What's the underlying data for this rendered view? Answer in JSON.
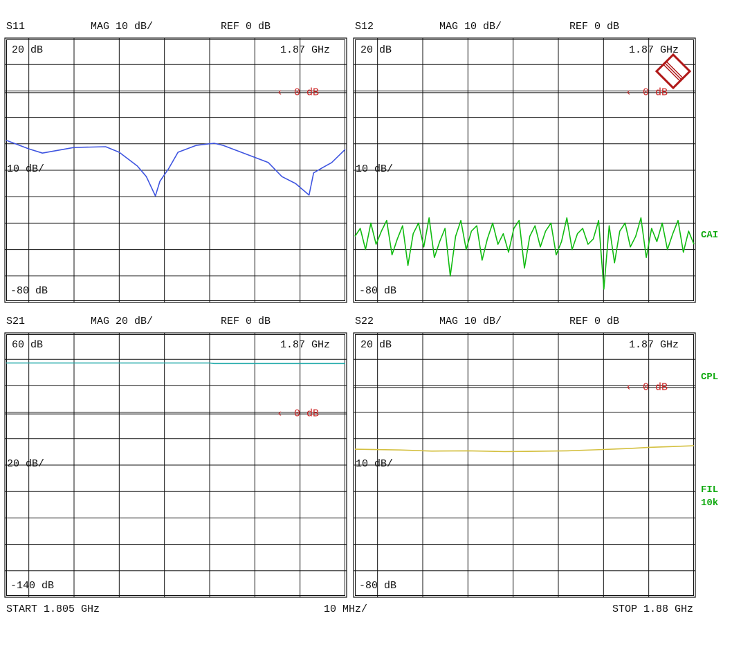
{
  "footer": {
    "start": "START  1.805 GHz",
    "span": "10 MHz/",
    "stop": "STOP 1.88 GHz"
  },
  "side_labels": {
    "cai": "CAI",
    "cpl": "CPL",
    "fil": "FIL",
    "fil_bw": "10k"
  },
  "logo": {
    "text": "R&S",
    "color": "#b01818"
  },
  "chart_data": [
    {
      "type": "line",
      "title": "S11",
      "format": "MAG 10 dB/",
      "ref": "REF 0 dB",
      "top_label": "20 dB",
      "mid_label": "10 dB/",
      "bottom_label": "-80 dB",
      "marker_freq_label": "1.87 GHz",
      "ref_marker": "0 dB",
      "ylim": [
        -80,
        20
      ],
      "ref_value": 0,
      "xlim_mhz": [
        1805,
        1880
      ],
      "grid": true,
      "color": "#3f55e0",
      "x_mhz": [
        1805,
        1810,
        1813,
        1820,
        1827,
        1830,
        1834,
        1836,
        1838,
        1839,
        1841,
        1843,
        1847,
        1851,
        1853,
        1857,
        1863,
        1866,
        1869,
        1872,
        1873,
        1875,
        1877,
        1880
      ],
      "y_db": [
        -18.7,
        -21.9,
        -23.5,
        -21.4,
        -21.1,
        -23.2,
        -28.4,
        -32.4,
        -39.7,
        -34.2,
        -29.2,
        -23.2,
        -20.6,
        -19.8,
        -20.6,
        -23.2,
        -27.1,
        -32.4,
        -35,
        -39.4,
        -31,
        -29,
        -27.1,
        -22.1
      ]
    },
    {
      "type": "line",
      "title": "S12",
      "format": "MAG 10 dB/",
      "ref": "REF 0 dB",
      "top_label": "20 dB",
      "mid_label": "10 dB/",
      "bottom_label": "-80 dB",
      "marker_freq_label": "1.87 GHz",
      "ref_marker": "0 dB",
      "ylim": [
        -80,
        20
      ],
      "ref_value": 0,
      "xlim_mhz": [
        1805,
        1880
      ],
      "grid": true,
      "color": "#11bb11",
      "y_db": [
        -55,
        -52,
        -60,
        -50,
        -58,
        -53,
        -49,
        -62,
        -56,
        -51,
        -66,
        -54,
        -50,
        -59,
        -48,
        -63,
        -57,
        -52,
        -70,
        -55,
        -49,
        -60,
        -53,
        -51,
        -64,
        -56,
        -50,
        -58,
        -54,
        -61,
        -52,
        -49,
        -67,
        -55,
        -51,
        -59,
        -53,
        -50,
        -62,
        -57,
        -48,
        -60,
        -54,
        -52,
        -58,
        -56,
        -49,
        -75,
        -51,
        -65,
        -53,
        -50,
        -59,
        -55,
        -48,
        -63,
        -52,
        -57,
        -50,
        -60,
        -54,
        -49,
        -61,
        -53,
        -58
      ]
    },
    {
      "type": "line",
      "title": "S21",
      "format": "MAG 20 dB/",
      "ref": "REF 0 dB",
      "top_label": "60 dB",
      "mid_label": "20 dB/",
      "bottom_label": "-140 dB",
      "marker_freq_label": "1.87 GHz",
      "ref_marker": "0 dB",
      "ylim": [
        -140,
        60
      ],
      "ref_value": 0,
      "xlim_mhz": [
        1805,
        1880
      ],
      "grid": true,
      "color": "#22aaaa",
      "x_mhz": [
        1805,
        1850,
        1851,
        1880
      ],
      "y_db": [
        37.2,
        37.2,
        36.8,
        36.8
      ]
    },
    {
      "type": "line",
      "title": "S22",
      "format": "MAG 10 dB/",
      "ref": "REF 0 dB",
      "top_label": "20 dB",
      "mid_label": "10 dB/",
      "bottom_label": "-80 dB",
      "marker_freq_label": "1.87 GHz",
      "ref_marker": "0 dB",
      "ylim": [
        -80,
        20
      ],
      "ref_value": 0,
      "xlim_mhz": [
        1805,
        1880
      ],
      "grid": true,
      "color": "#d4c040",
      "x_mhz": [
        1805,
        1815,
        1822,
        1830,
        1838,
        1845,
        1852,
        1860,
        1866,
        1870,
        1875,
        1880
      ],
      "y_db": [
        -24,
        -24.3,
        -24.7,
        -24.6,
        -24.9,
        -24.8,
        -24.6,
        -24.1,
        -23.7,
        -23.3,
        -23.0,
        -22.7
      ]
    }
  ]
}
